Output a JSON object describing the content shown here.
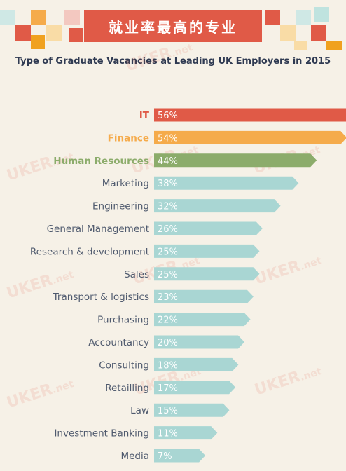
{
  "banner": {
    "title": "就业率最高的专业"
  },
  "watermark": {
    "text": "UKER",
    "suffix": ".net"
  },
  "colors": {
    "background": "#f6f1e7",
    "banner": "#e05a47",
    "highlight_1": "#e05a47",
    "highlight_2": "#f5ab4b",
    "highlight_3": "#8cac6b",
    "default_bar": "#a9d6d3",
    "label_default": "#4f5a6e",
    "subtitle": "#2f3a52"
  },
  "chart_data": {
    "type": "bar",
    "orientation": "horizontal",
    "title": "Type of Graduate Vacancies at Leading UK Employers in 2015",
    "categories": [
      "IT",
      "Finance",
      "Human Resources",
      "Marketing",
      "Engineering",
      "General Management",
      "Research & development",
      "Sales",
      "Transport & logistics",
      "Purchasing",
      "Accountancy",
      "Consulting",
      "Retailling",
      "Law",
      "Investment Banking",
      "Media"
    ],
    "values": [
      56,
      54,
      44,
      38,
      32,
      26,
      25,
      25,
      23,
      22,
      20,
      18,
      17,
      15,
      11,
      7
    ],
    "value_labels": [
      "56%",
      "54%",
      "44%",
      "38%",
      "32%",
      "26%",
      "25%",
      "25%",
      "23%",
      "22%",
      "20%",
      "18%",
      "17%",
      "15%",
      "11%",
      "7%"
    ],
    "unit": "%",
    "highlighted": [
      0,
      1,
      2
    ]
  }
}
